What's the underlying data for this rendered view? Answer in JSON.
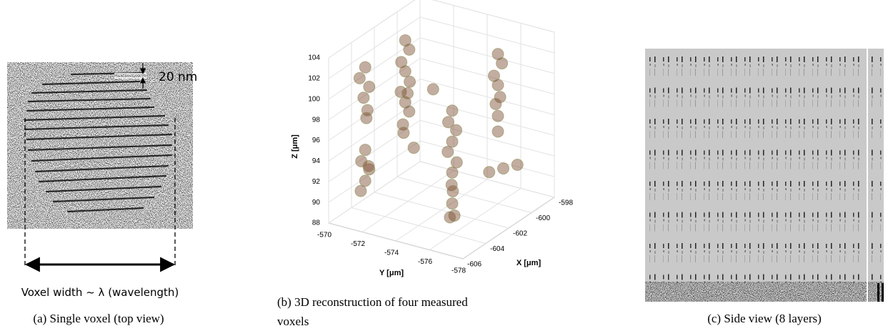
{
  "panels": [
    {
      "scale_label": "20 nm",
      "annotation": "Voxel width ~ λ (wavelength)",
      "caption": "(a) Single voxel (top view)"
    },
    {
      "caption_lines": [
        "(b) 3D reconstruction of four measured",
        "voxels"
      ]
    },
    {
      "caption": "(c) Side view (8 layers)"
    }
  ],
  "chart_data": {
    "type": "scatter3d",
    "xlabel": "X [μm]",
    "ylabel": "Y [μm]",
    "zlabel": "Z [μm]",
    "color": "#7a4a2e",
    "xlim": [
      -606,
      -598
    ],
    "xticks": [
      -606,
      -604,
      -602,
      -600,
      -598
    ],
    "ylim": [
      -578,
      -570
    ],
    "yticks": [
      -570,
      -572,
      -574,
      -576,
      -578
    ],
    "zlim": [
      88,
      104
    ],
    "zticks": [
      88,
      90,
      92,
      94,
      96,
      98,
      100,
      102,
      104
    ],
    "grid": true,
    "x": [
      -605,
      -605.2,
      -604.8,
      -605,
      -605.1,
      -604.9,
      -605,
      -605.2,
      -604.8,
      -605,
      -605.1,
      -605,
      -601.5,
      -601.3,
      -601.7,
      -601.5,
      -601.4,
      -601.6,
      -601.5,
      -601.3,
      -601.7,
      -601.5,
      -601.2,
      -604,
      -604.2,
      -603.8,
      -604,
      -604.1,
      -603.9,
      -604,
      -604.2,
      -603.8,
      -604,
      -604.1,
      -603.9,
      -600,
      -599.8,
      -600.2,
      -600,
      -600.1,
      -599.9,
      -600,
      -600,
      -601,
      -600.5,
      -601.5,
      -603.5,
      -602
    ],
    "y": [
      -571.5,
      -571.3,
      -571.6,
      -571.4,
      -571.7,
      -571.5,
      -571.5,
      -571.4,
      -571.6,
      -571.5,
      -571.3,
      -571.7,
      -571.5,
      -571.6,
      -571.4,
      -571.5,
      -571.7,
      -571.3,
      -571.5,
      -571.6,
      -571.5,
      -571.4,
      -571.8,
      -576,
      -575.9,
      -576.1,
      -576,
      -575.8,
      -576.2,
      -576,
      -576.1,
      -575.9,
      -576,
      -576.2,
      -575.8,
      -576,
      -576.1,
      -575.9,
      -576,
      -576.2,
      -575.8,
      -576,
      -576,
      -577,
      -577.5,
      -576.5,
      -573,
      -573.5
    ],
    "z": [
      103,
      102,
      101,
      100,
      99,
      98,
      95,
      94,
      93,
      92,
      91,
      93.5,
      103,
      102,
      101,
      100,
      99,
      98,
      97,
      96,
      95,
      94,
      92.5,
      100,
      99,
      98,
      97,
      96,
      95,
      94,
      93,
      92,
      91,
      90,
      89.5,
      102.5,
      101.5,
      100.5,
      99.5,
      98.5,
      97.5,
      96.5,
      95,
      92.6,
      92.8,
      92.4,
      100,
      99.5
    ]
  }
}
